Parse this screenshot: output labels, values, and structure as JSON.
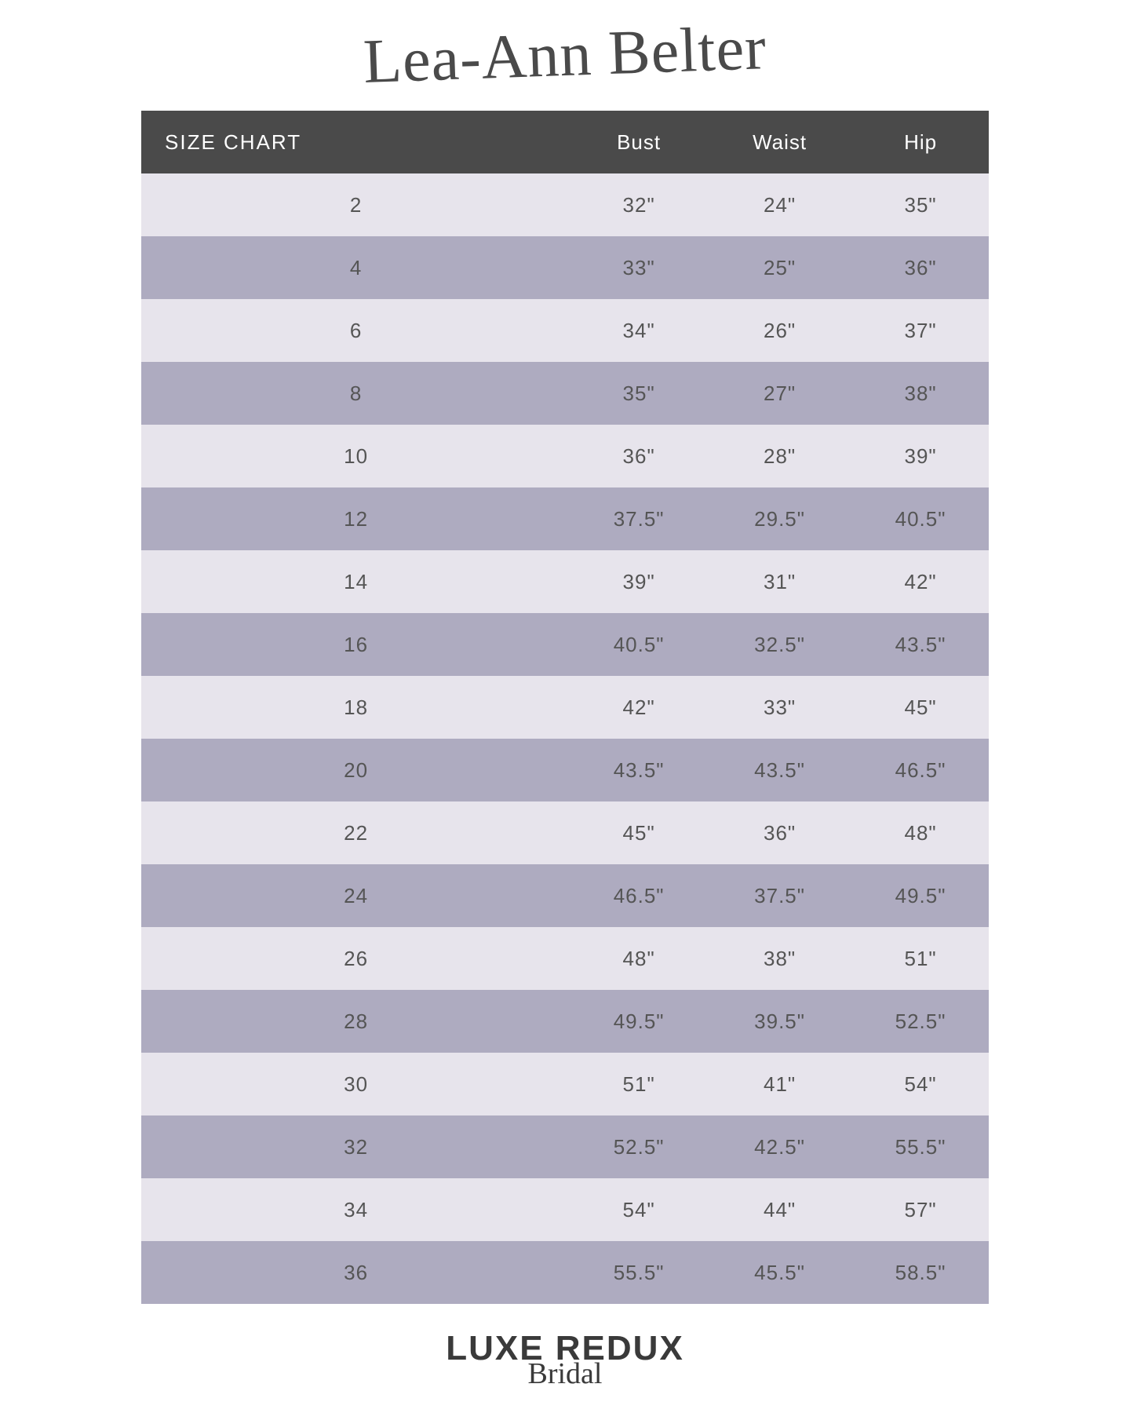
{
  "title": "Lea-Ann Belter",
  "footer": {
    "main": "LUXE REDUX",
    "sub": "Bridal"
  },
  "table": {
    "header_bg": "#4a4a4a",
    "header_fg": "#ffffff",
    "row_odd_bg": "#e7e4ec",
    "row_even_bg": "#aeabc0",
    "text_color": "#555555",
    "columns": [
      "SIZE CHART",
      "Bust",
      "Waist",
      "Hip"
    ],
    "rows": [
      [
        "2",
        "32\"",
        "24\"",
        "35\""
      ],
      [
        "4",
        "33\"",
        "25\"",
        "36\""
      ],
      [
        "6",
        "34\"",
        "26\"",
        "37\""
      ],
      [
        "8",
        "35\"",
        "27\"",
        "38\""
      ],
      [
        "10",
        "36\"",
        "28\"",
        "39\""
      ],
      [
        "12",
        "37.5\"",
        "29.5\"",
        "40.5\""
      ],
      [
        "14",
        "39\"",
        "31\"",
        "42\""
      ],
      [
        "16",
        "40.5\"",
        "32.5\"",
        "43.5\""
      ],
      [
        "18",
        "42\"",
        "33\"",
        "45\""
      ],
      [
        "20",
        "43.5\"",
        "43.5\"",
        "46.5\""
      ],
      [
        "22",
        "45\"",
        "36\"",
        "48\""
      ],
      [
        "24",
        "46.5\"",
        "37.5\"",
        "49.5\""
      ],
      [
        "26",
        "48\"",
        "38\"",
        "51\""
      ],
      [
        "28",
        "49.5\"",
        "39.5\"",
        "52.5\""
      ],
      [
        "30",
        "51\"",
        "41\"",
        "54\""
      ],
      [
        "32",
        "52.5\"",
        "42.5\"",
        "55.5\""
      ],
      [
        "34",
        "54\"",
        "44\"",
        "57\""
      ],
      [
        "36",
        "55.5\"",
        "45.5\"",
        "58.5\""
      ]
    ]
  }
}
